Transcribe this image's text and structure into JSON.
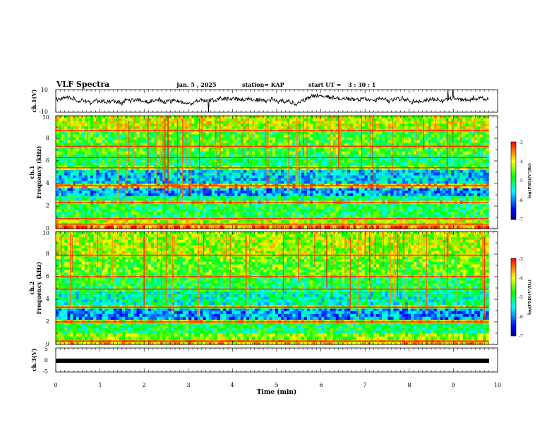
{
  "header": {
    "title": "VLF Spectra",
    "date": "Jan. 5 , 2025",
    "station": "station= KAP",
    "start_label": "start  UT =",
    "start_time": "3  : 30 : 1"
  },
  "chart_data": [
    {
      "type": "line",
      "id": "ch1-waveform",
      "ylabel": "ch.1(V)",
      "ylim": [
        -10,
        10
      ],
      "ytick_labels": [
        "10",
        "-10"
      ],
      "xlim": [
        0,
        10
      ],
      "mean": 1.5,
      "amplitude": 3.5
    },
    {
      "type": "heatmap",
      "id": "ch1-spectrogram",
      "label": "ch.1",
      "ylabel": "Frequency (kHz)",
      "ylim": [
        0,
        10
      ],
      "ytick_labels": [
        "0",
        "2",
        "4",
        "6",
        "8",
        "10"
      ],
      "xlim": [
        0,
        9.8
      ],
      "colorbar": {
        "label": "log(PSD)(V²/Hz)",
        "range": [
          -7,
          -3
        ],
        "tick_labels": [
          "-3",
          "-4",
          "-5",
          "-6",
          "-7"
        ]
      },
      "bands_khz": [
        {
          "from": 0.0,
          "to": 0.3,
          "log_psd": -3.5
        },
        {
          "from": 0.3,
          "to": 1.0,
          "log_psd": -4.2
        },
        {
          "from": 1.0,
          "to": 2.2,
          "log_psd": -4.9
        },
        {
          "from": 2.2,
          "to": 2.5,
          "log_psd": -3.9
        },
        {
          "from": 2.5,
          "to": 2.9,
          "log_psd": -5.1
        },
        {
          "from": 2.9,
          "to": 3.6,
          "log_psd": -5.9
        },
        {
          "from": 3.6,
          "to": 4.0,
          "log_psd": -3.8
        },
        {
          "from": 4.0,
          "to": 5.2,
          "log_psd": -5.7
        },
        {
          "from": 5.2,
          "to": 5.6,
          "log_psd": -4.5
        },
        {
          "from": 5.6,
          "to": 6.6,
          "log_psd": -5.0
        },
        {
          "from": 6.6,
          "to": 8.6,
          "log_psd": -4.7
        },
        {
          "from": 8.6,
          "to": 10.0,
          "log_psd": -4.2
        }
      ],
      "lines_khz": [
        0.4,
        0.9,
        2.3,
        3.8,
        5.4,
        6.3,
        7.3,
        8.7
      ]
    },
    {
      "type": "heatmap",
      "id": "ch2-spectrogram",
      "label": "ch.2",
      "ylabel": "Frequency (kHz)",
      "ylim": [
        0,
        10
      ],
      "ytick_labels": [
        "0",
        "2",
        "4",
        "6",
        "8",
        "10"
      ],
      "xlim": [
        0,
        9.8
      ],
      "colorbar": {
        "label": "log(PSD)(V²/Hz)",
        "range": [
          -7,
          -3
        ],
        "tick_labels": [
          "-3",
          "-4",
          "-5",
          "-6",
          "-7"
        ]
      },
      "bands_khz": [
        {
          "from": 0.0,
          "to": 0.4,
          "log_psd": -3.8
        },
        {
          "from": 0.4,
          "to": 1.0,
          "log_psd": -4.4
        },
        {
          "from": 1.0,
          "to": 1.9,
          "log_psd": -5.0
        },
        {
          "from": 1.9,
          "to": 2.2,
          "log_psd": -4.0
        },
        {
          "from": 2.2,
          "to": 3.2,
          "log_psd": -5.9
        },
        {
          "from": 3.2,
          "to": 3.5,
          "log_psd": -4.3
        },
        {
          "from": 3.5,
          "to": 4.7,
          "log_psd": -5.3
        },
        {
          "from": 4.7,
          "to": 5.9,
          "log_psd": -4.9
        },
        {
          "from": 5.9,
          "to": 7.8,
          "log_psd": -4.6
        },
        {
          "from": 7.8,
          "to": 10.0,
          "log_psd": -4.3
        }
      ],
      "lines_khz": [
        0.3,
        2.0,
        3.3,
        4.9,
        6.0,
        7.9
      ]
    },
    {
      "type": "line",
      "id": "ch3-waveform",
      "ylabel": "ch.3(V)",
      "ylim": [
        -5,
        5
      ],
      "ytick_labels": [
        "5",
        "0",
        "-5"
      ],
      "xlim": [
        0,
        10
      ],
      "value": 0
    }
  ],
  "xaxis": {
    "label": "Time (min)",
    "range": [
      0,
      10
    ],
    "tick_labels": [
      "0",
      "1",
      "2",
      "3",
      "4",
      "5",
      "6",
      "7",
      "8",
      "9",
      "10"
    ]
  },
  "colors": {
    "ink": "#000000",
    "colormap": [
      "#000080",
      "#0000ff",
      "#00ffff",
      "#00ff00",
      "#ffff00",
      "#ff0000"
    ]
  }
}
